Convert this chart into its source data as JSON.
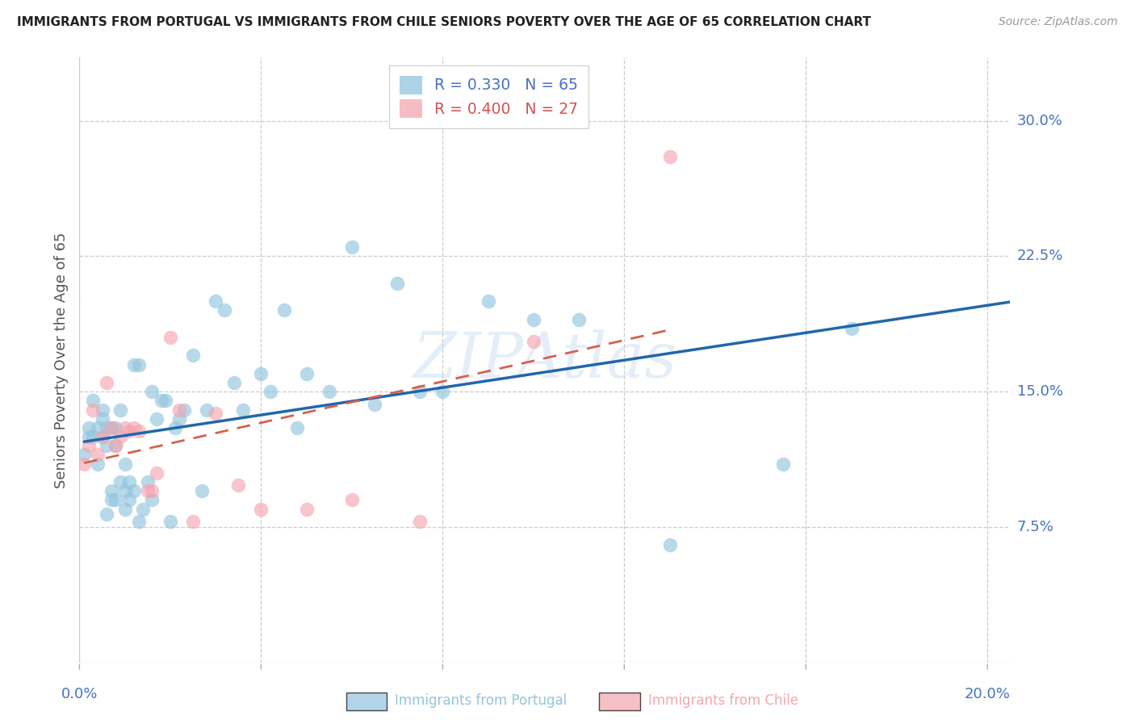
{
  "title": "IMMIGRANTS FROM PORTUGAL VS IMMIGRANTS FROM CHILE SENIORS POVERTY OVER THE AGE OF 65 CORRELATION CHART",
  "source": "Source: ZipAtlas.com",
  "ylabel": "Seniors Poverty Over the Age of 65",
  "xlim": [
    0.0,
    0.205
  ],
  "ylim": [
    0.0,
    0.335
  ],
  "ytick_positions": [
    0.075,
    0.15,
    0.225,
    0.3
  ],
  "ytick_labels": [
    "7.5%",
    "15.0%",
    "22.5%",
    "30.0%"
  ],
  "xtick_positions": [
    0.0,
    0.04,
    0.08,
    0.12,
    0.16,
    0.2
  ],
  "portugal_color": "#92c5de",
  "chile_color": "#f4a6b0",
  "portugal_R": 0.33,
  "portugal_N": 65,
  "chile_R": 0.4,
  "chile_N": 27,
  "portugal_line_color": "#2166ac",
  "chile_line_color": "#d6604d",
  "watermark": "ZIPAtlas",
  "portugal_x": [
    0.001,
    0.002,
    0.002,
    0.003,
    0.003,
    0.004,
    0.004,
    0.005,
    0.005,
    0.005,
    0.006,
    0.006,
    0.006,
    0.007,
    0.007,
    0.007,
    0.008,
    0.008,
    0.008,
    0.009,
    0.009,
    0.01,
    0.01,
    0.01,
    0.011,
    0.011,
    0.012,
    0.012,
    0.013,
    0.013,
    0.014,
    0.015,
    0.016,
    0.016,
    0.017,
    0.018,
    0.019,
    0.02,
    0.021,
    0.022,
    0.023,
    0.025,
    0.027,
    0.028,
    0.03,
    0.032,
    0.034,
    0.036,
    0.04,
    0.042,
    0.045,
    0.048,
    0.05,
    0.055,
    0.06,
    0.065,
    0.07,
    0.075,
    0.08,
    0.09,
    0.1,
    0.11,
    0.13,
    0.155,
    0.17
  ],
  "portugal_y": [
    0.115,
    0.13,
    0.125,
    0.125,
    0.145,
    0.11,
    0.13,
    0.125,
    0.135,
    0.14,
    0.13,
    0.12,
    0.082,
    0.09,
    0.13,
    0.095,
    0.09,
    0.12,
    0.13,
    0.1,
    0.14,
    0.095,
    0.11,
    0.085,
    0.09,
    0.1,
    0.095,
    0.165,
    0.165,
    0.078,
    0.085,
    0.1,
    0.09,
    0.15,
    0.135,
    0.145,
    0.145,
    0.078,
    0.13,
    0.135,
    0.14,
    0.17,
    0.095,
    0.14,
    0.2,
    0.195,
    0.155,
    0.14,
    0.16,
    0.15,
    0.195,
    0.13,
    0.16,
    0.15,
    0.23,
    0.143,
    0.21,
    0.15,
    0.15,
    0.2,
    0.19,
    0.19,
    0.065,
    0.11,
    0.185
  ],
  "chile_x": [
    0.001,
    0.002,
    0.003,
    0.004,
    0.005,
    0.006,
    0.007,
    0.008,
    0.009,
    0.01,
    0.011,
    0.012,
    0.013,
    0.015,
    0.016,
    0.017,
    0.02,
    0.022,
    0.025,
    0.03,
    0.035,
    0.04,
    0.05,
    0.06,
    0.075,
    0.1,
    0.13
  ],
  "chile_y": [
    0.11,
    0.12,
    0.14,
    0.115,
    0.125,
    0.155,
    0.13,
    0.12,
    0.125,
    0.13,
    0.128,
    0.13,
    0.128,
    0.095,
    0.095,
    0.105,
    0.18,
    0.14,
    0.078,
    0.138,
    0.098,
    0.085,
    0.085,
    0.09,
    0.078,
    0.178,
    0.28
  ]
}
